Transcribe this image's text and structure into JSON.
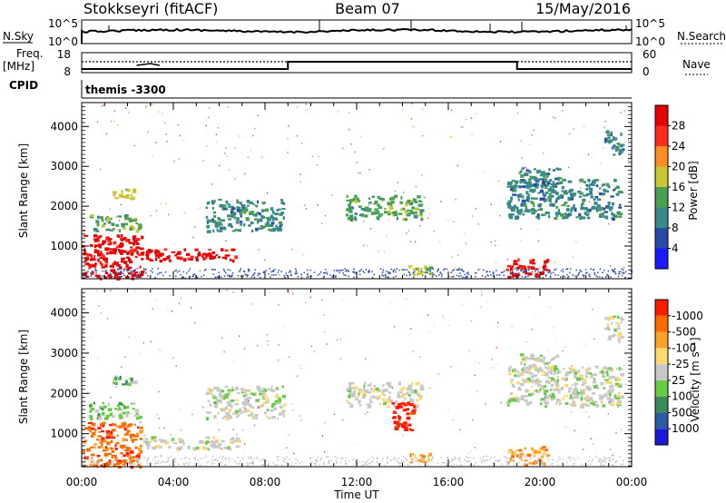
{
  "header": {
    "station": "Stokkseyri (fitACF)",
    "beam": "Beam 07",
    "date": "15/May/2016"
  },
  "summary_panels": {
    "nsky_label": "N.Sky",
    "nsky_ticks_left": [
      "10^5",
      "10^0"
    ],
    "nsky_ticks_right": [
      "10^5",
      "10^0"
    ],
    "nsearch_label": "N.Search",
    "freq_label_1": "Freq.",
    "freq_label_2": "[MHz]",
    "freq_ticks": [
      "18",
      "8"
    ],
    "nave_ticks": [
      "60",
      "0"
    ],
    "nave_label": "Nave",
    "cpid_label": "CPID",
    "cpid_value": "themis -3300"
  },
  "chart_data": [
    {
      "type": "heatmap",
      "name": "power",
      "title": "",
      "xlabel": "",
      "ylabel": "Slant Range [km]",
      "xlim_hours": [
        0,
        24
      ],
      "ylim": [
        180,
        4600
      ],
      "x_tick_labels": [
        "00:00",
        "04:00",
        "08:00",
        "12:00",
        "16:00",
        "20:00",
        "00:00"
      ],
      "y_ticks": [
        1000,
        2000,
        3000,
        4000
      ],
      "colorbar": {
        "label": "Power [dB]",
        "levels": [
          "4",
          "8",
          "12",
          "16",
          "20",
          "24",
          "28"
        ],
        "colors": [
          "#1a1aff",
          "#2a4aa8",
          "#3a8a88",
          "#4aa050",
          "#c8c832",
          "#ff8c1e",
          "#ff2a1e",
          "#e80000"
        ]
      },
      "echo_regions": [
        {
          "t0": 0.0,
          "t1": 2.6,
          "r0": 200,
          "r1": 1300,
          "level": 28
        },
        {
          "t0": 2.6,
          "t1": 6.8,
          "r0": 650,
          "r1": 950,
          "level": 28
        },
        {
          "t0": 0.3,
          "t1": 2.5,
          "r0": 1400,
          "r1": 1800,
          "level": 12
        },
        {
          "t0": 1.3,
          "t1": 2.3,
          "r0": 2200,
          "r1": 2450,
          "level": 16
        },
        {
          "t0": 5.4,
          "t1": 8.8,
          "r0": 1400,
          "r1": 2200,
          "level": 8
        },
        {
          "t0": 11.5,
          "t1": 14.8,
          "r0": 1700,
          "r1": 2300,
          "level": 12
        },
        {
          "t0": 14.2,
          "t1": 15.2,
          "r0": 300,
          "r1": 550,
          "level": 16
        },
        {
          "t0": 18.5,
          "t1": 20.3,
          "r0": 250,
          "r1": 700,
          "level": 28
        },
        {
          "t0": 18.5,
          "t1": 23.5,
          "r0": 1700,
          "r1": 2700,
          "level": 8
        },
        {
          "t0": 19.0,
          "t1": 20.8,
          "r0": 2500,
          "r1": 3000,
          "level": 8
        },
        {
          "t0": 22.8,
          "t1": 23.6,
          "r0": 3300,
          "r1": 3950,
          "level": 8
        }
      ]
    },
    {
      "type": "heatmap",
      "name": "velocity",
      "title": "",
      "xlabel": "Time UT",
      "ylabel": "Slant Range [km]",
      "xlim_hours": [
        0,
        24
      ],
      "ylim": [
        180,
        4600
      ],
      "x_tick_labels": [
        "00:00",
        "04:00",
        "08:00",
        "12:00",
        "16:00",
        "20:00",
        "00:00"
      ],
      "y_ticks": [
        1000,
        2000,
        3000,
        4000
      ],
      "colorbar": {
        "label": "Velocity [m s⁻¹]",
        "levels": [
          "1000",
          "500",
          "100",
          "25",
          "-25",
          "-100",
          "-500",
          "-1000"
        ],
        "colors": [
          "#1a1ad8",
          "#2a5aa8",
          "#3a8a5a",
          "#66cc44",
          "#c8c8c8",
          "#ffd870",
          "#ffa028",
          "#ff6a00",
          "#ff1a00"
        ]
      },
      "echo_regions": [
        {
          "t0": 0.0,
          "t1": 2.6,
          "r0": 200,
          "r1": 1300,
          "level": -500
        },
        {
          "t0": 2.6,
          "t1": 6.8,
          "r0": 650,
          "r1": 950,
          "level": 25
        },
        {
          "t0": 0.3,
          "t1": 2.5,
          "r0": 1400,
          "r1": 1800,
          "level": 100
        },
        {
          "t0": 1.3,
          "t1": 2.3,
          "r0": 2200,
          "r1": 2450,
          "level": 100
        },
        {
          "t0": 5.4,
          "t1": 8.8,
          "r0": 1400,
          "r1": 2200,
          "level": 25
        },
        {
          "t0": 11.5,
          "t1": 14.8,
          "r0": 1700,
          "r1": 2300,
          "level": 25
        },
        {
          "t0": 13.5,
          "t1": 14.5,
          "r0": 1100,
          "r1": 1800,
          "level": -1000
        },
        {
          "t0": 14.2,
          "t1": 15.2,
          "r0": 300,
          "r1": 550,
          "level": -100
        },
        {
          "t0": 18.5,
          "t1": 20.3,
          "r0": 250,
          "r1": 700,
          "level": -100
        },
        {
          "t0": 18.5,
          "t1": 23.5,
          "r0": 1700,
          "r1": 2700,
          "level": 25
        },
        {
          "t0": 19.0,
          "t1": 20.8,
          "r0": 2500,
          "r1": 3000,
          "level": 25
        },
        {
          "t0": 22.8,
          "t1": 23.6,
          "r0": 3300,
          "r1": 3950,
          "level": 25
        }
      ]
    }
  ]
}
